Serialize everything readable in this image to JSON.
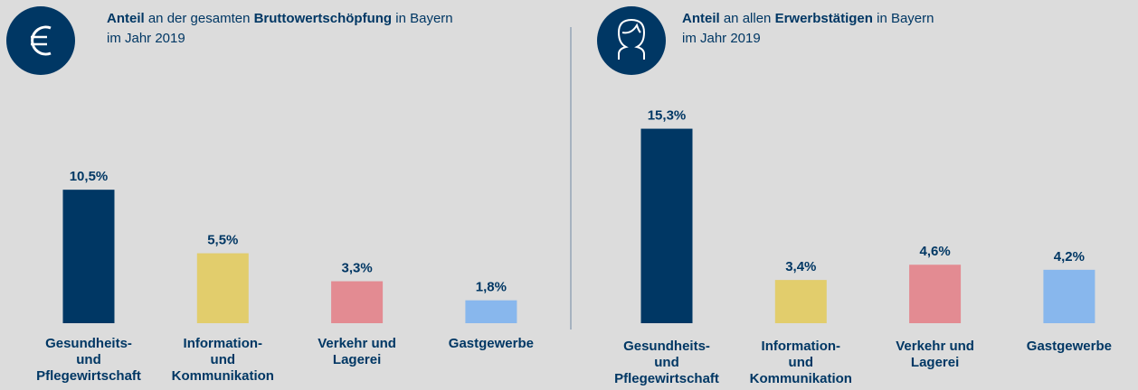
{
  "chart_data": [
    {
      "type": "bar",
      "title": {
        "lead": "Anteil",
        "text1": "an der gesamten",
        "key": "Bruttowertschöpfung",
        "text2": "in Bayern",
        "line2": "im Jahr 2019"
      },
      "categories": [
        [
          "Gesundheits-",
          "und",
          "Pflegewirtschaft"
        ],
        [
          "Information-",
          "und",
          "Kommunikation"
        ],
        [
          "Verkehr und",
          "Lagerei"
        ],
        [
          "Gastgewerbe"
        ]
      ],
      "values": [
        10.5,
        5.5,
        3.3,
        1.8
      ],
      "value_labels": [
        "10,5%",
        "5,5%",
        "3,3%",
        "1,8%"
      ],
      "colors": [
        "#003764",
        "#e2cd6c",
        "#e38b92",
        "#88b7ed"
      ]
    },
    {
      "type": "bar",
      "title": {
        "lead": "Anteil",
        "text1": "an allen",
        "key": "Erwerbstätigen",
        "text2": "in Bayern",
        "line2": "im Jahr 2019"
      },
      "categories": [
        [
          "Gesundheits-",
          "und",
          "Pflegewirtschaft"
        ],
        [
          "Information-",
          "und",
          "Kommunikation"
        ],
        [
          "Verkehr und",
          "Lagerei"
        ],
        [
          "Gastgewerbe"
        ]
      ],
      "values": [
        15.3,
        3.4,
        4.6,
        4.2
      ],
      "value_labels": [
        "15,3%",
        "3,4%",
        "4,6%",
        "4,2%"
      ],
      "colors": [
        "#003764",
        "#e2cd6c",
        "#e38b92",
        "#88b7ed"
      ]
    }
  ]
}
